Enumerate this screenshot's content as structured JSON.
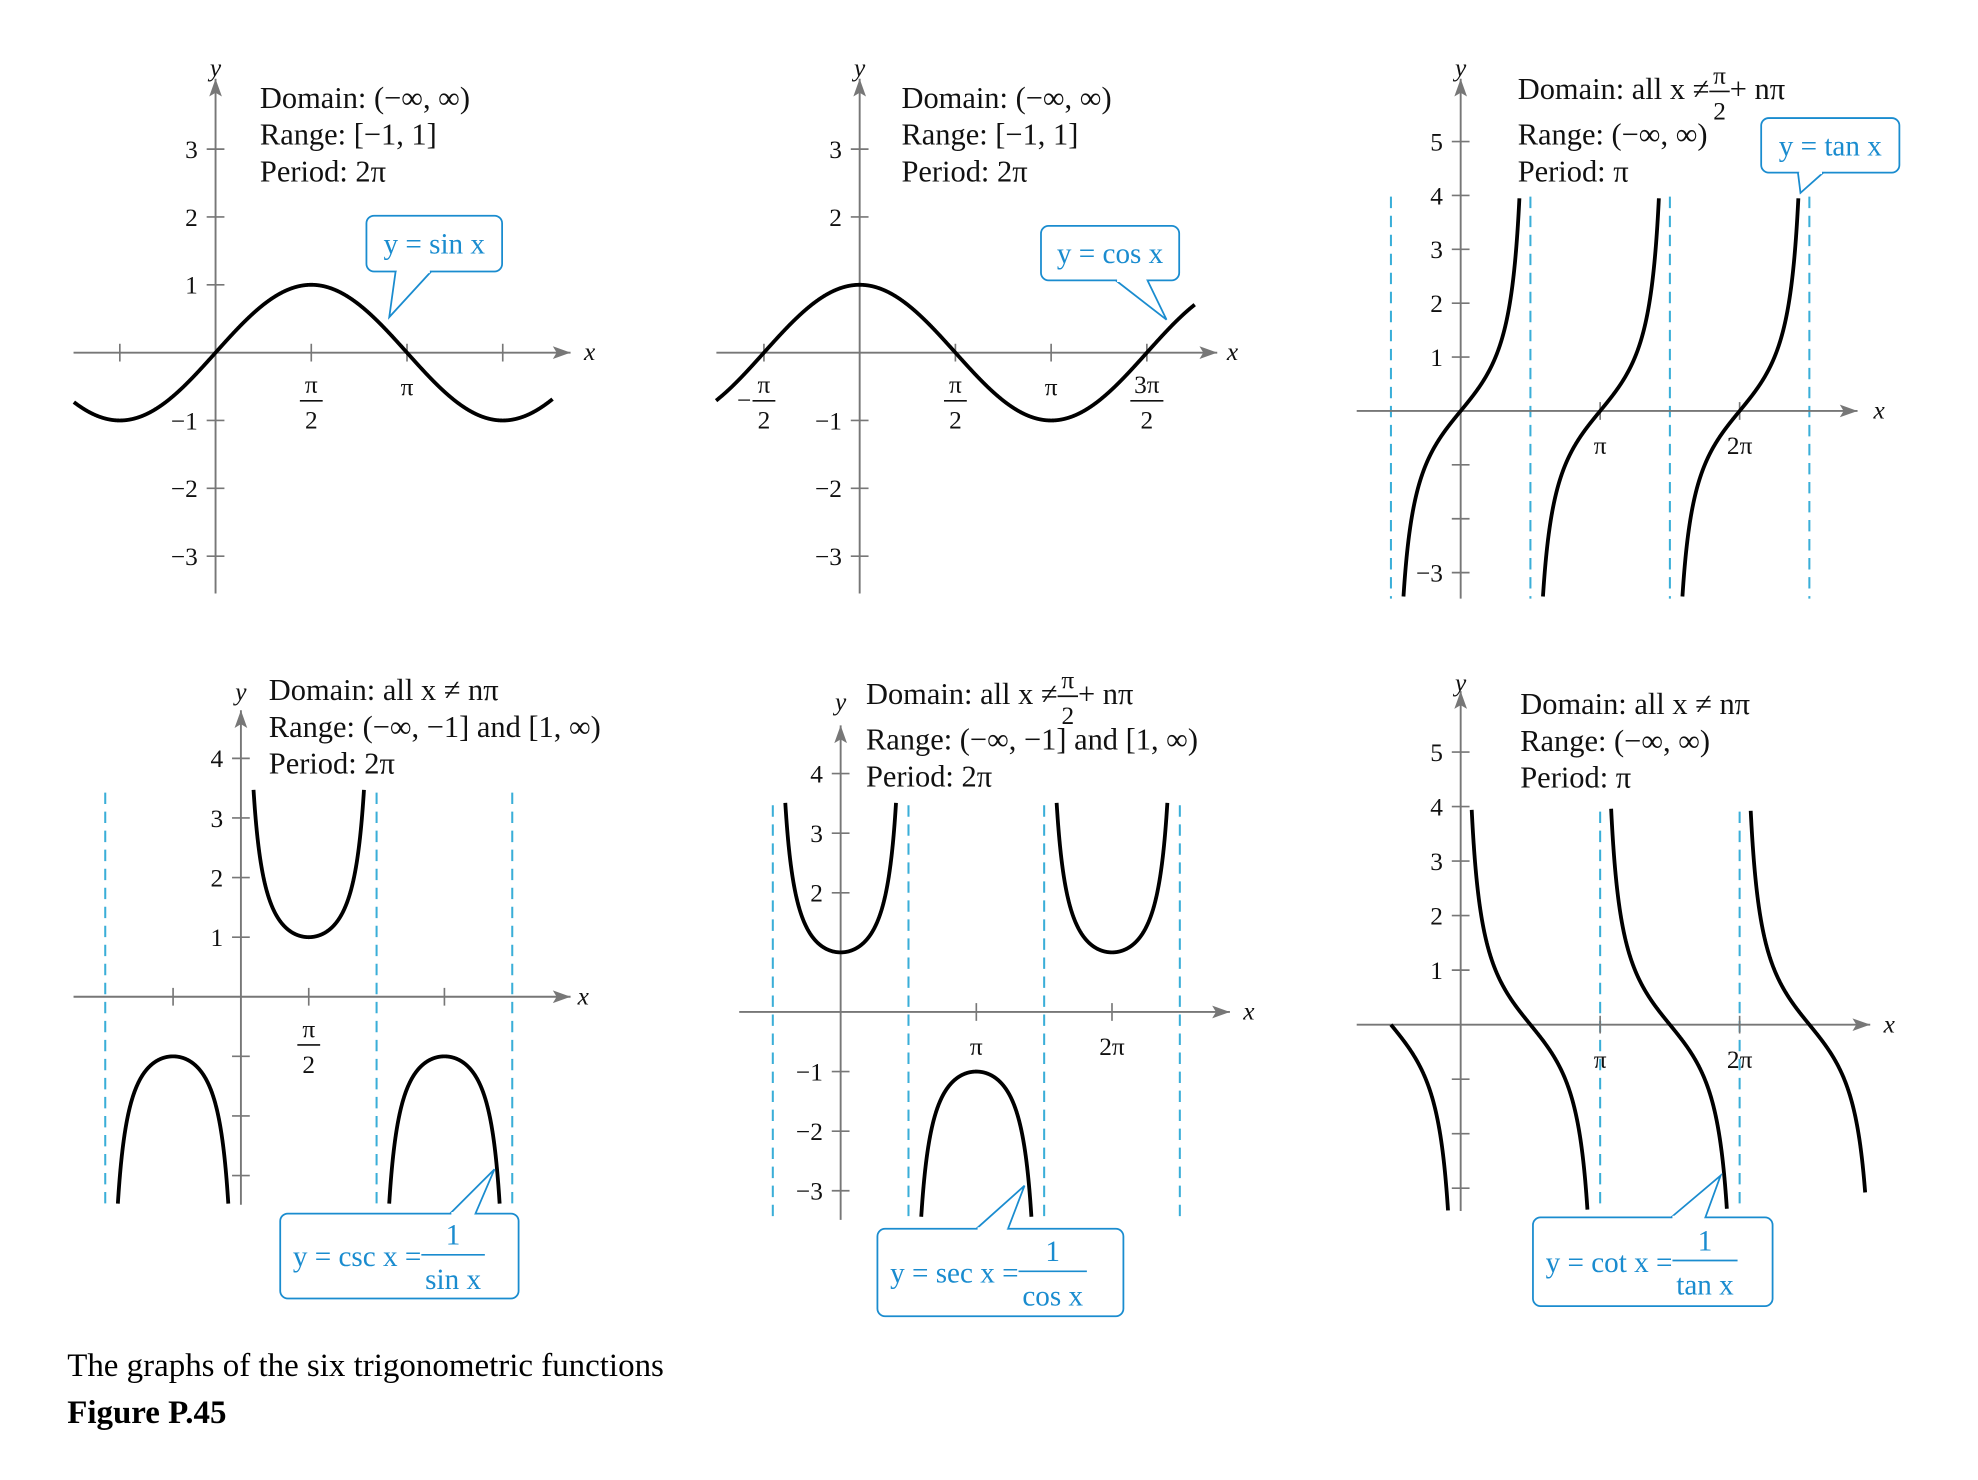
{
  "figure": {
    "panels": [
      {
        "function": "sin",
        "info": [
          "Domain: (−∞, ∞)",
          "Range: [−1, 1]",
          "Period: 2π"
        ],
        "callout": "y = sin x",
        "x_label": "x",
        "y_label": "y",
        "yticks": [
          3,
          2,
          1,
          {
            "value": -1,
            "label": "−1"
          },
          {
            "value": -2,
            "label": "−2"
          },
          {
            "value": -3,
            "label": "−3"
          }
        ],
        "xticks": [
          {
            "value": 0.5,
            "numerator": "π",
            "denominator": "2"
          },
          {
            "value": 1,
            "label": "π"
          }
        ]
      },
      {
        "function": "cos",
        "info": [
          "Domain: (−∞, ∞)",
          "Range: [−1, 1]",
          "Period: 2π"
        ],
        "callout": "y = cos x",
        "x_label": "x",
        "y_label": "y",
        "yticks": [
          3,
          2,
          {
            "value": -1,
            "label": "−1"
          },
          {
            "value": -2,
            "label": "−2"
          },
          {
            "value": -3,
            "label": "−3"
          }
        ],
        "xticks": [
          {
            "value": -0.5,
            "sign": "−",
            "numerator": "π",
            "denominator": "2"
          },
          {
            "value": 0.5,
            "numerator": "π",
            "denominator": "2"
          },
          {
            "value": 1,
            "label": "π"
          },
          {
            "value": 1.5,
            "numerator": "3π",
            "denominator": "2"
          }
        ]
      },
      {
        "function": "tan",
        "info": [
          {
            "before": "Domain: all x ≠ ",
            "numerator": "π",
            "denominator": "2",
            "after": " + nπ"
          },
          "Range: (−∞, ∞)",
          "Period: π"
        ],
        "callout": "y = tan x",
        "x_label": "x",
        "y_label": "y",
        "yticks": [
          5,
          4,
          3,
          2,
          1,
          {
            "value": -3,
            "label": "−3"
          }
        ],
        "xticks": [
          {
            "value": 1,
            "label": "π"
          },
          {
            "value": 2,
            "label": "2π"
          }
        ]
      },
      {
        "function": "csc",
        "info": [
          "Domain: all x ≠ nπ",
          "Range: (−∞, −1] and [1, ∞)",
          "Period: 2π"
        ],
        "callout": {
          "before": "y = csc x = ",
          "numerator": "1",
          "denominator": "sin x"
        },
        "x_label": "x",
        "y_label": "y",
        "yticks": [
          4,
          3,
          2,
          1
        ],
        "xticks": [
          {
            "value": 0.5,
            "numerator": "π",
            "denominator": "2"
          }
        ]
      },
      {
        "function": "sec",
        "info": [
          {
            "before": "Domain: all x ≠ ",
            "numerator": "π",
            "denominator": "2",
            "after": " + nπ"
          },
          "Range: (−∞, −1] and [1, ∞)",
          "Period: 2π"
        ],
        "callout": {
          "before": "y = sec x = ",
          "numerator": "1",
          "denominator": "cos x"
        },
        "x_label": "x",
        "y_label": "y",
        "yticks": [
          4,
          3,
          2,
          {
            "value": -1,
            "label": "−1"
          },
          {
            "value": -2,
            "label": "−2"
          },
          {
            "value": -3,
            "label": "−3"
          }
        ],
        "xticks": [
          {
            "value": 1,
            "label": "π"
          },
          {
            "value": 2,
            "label": "2π"
          }
        ]
      },
      {
        "function": "cot",
        "info": [
          "Domain: all x ≠ nπ",
          "Range: (−∞, ∞)",
          "Period: π"
        ],
        "callout": {
          "before": "y = cot x = ",
          "numerator": "1",
          "denominator": "tan x"
        },
        "x_label": "x",
        "y_label": "y",
        "yticks": [
          5,
          4,
          3,
          2,
          1
        ],
        "xticks": [
          {
            "value": 1,
            "label": "π"
          },
          {
            "value": 2,
            "label": "2π"
          }
        ]
      }
    ],
    "caption": "The graphs of the six trigonometric functions",
    "label": "Figure P.45"
  }
}
